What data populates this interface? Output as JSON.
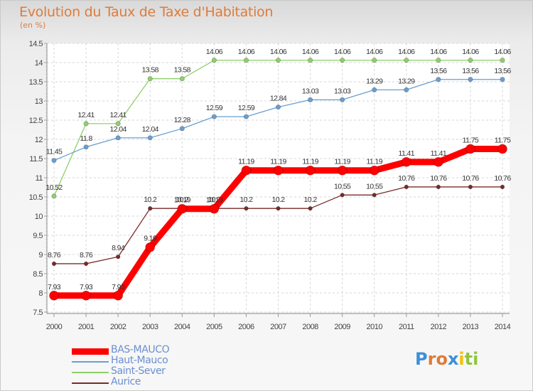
{
  "header": {
    "title": "Evolution du Taux de Taxe d'Habitation",
    "subtitle": "(en %)"
  },
  "chart_data": {
    "type": "line",
    "title": "Evolution du Taux de Taxe d'Habitation",
    "subtitle": "(en %)",
    "xlabel": "",
    "ylabel": "",
    "categories": [
      "2000",
      "2001",
      "2002",
      "2003",
      "2004",
      "2005",
      "2006",
      "2007",
      "2008",
      "2009",
      "2010",
      "2011",
      "2012",
      "2013",
      "2014"
    ],
    "ylim": [
      7.5,
      14.5
    ],
    "yticks": [
      "7.5",
      "8",
      "8.5",
      "9",
      "9.5",
      "10",
      "10.5",
      "11",
      "11.5",
      "12",
      "12.5",
      "13",
      "13.5",
      "14",
      "14.5"
    ],
    "grid": true,
    "legend_position": "bottom-left",
    "series": [
      {
        "name": "Aurice",
        "color": "#7a2a2a",
        "width": 1.3,
        "marker": 2.8,
        "values": [
          8.76,
          8.76,
          8.94,
          10.2,
          10.2,
          10.2,
          10.2,
          10.2,
          10.2,
          10.55,
          10.55,
          10.76,
          10.76,
          10.76,
          10.76
        ],
        "labels": [
          "8.76",
          "8.76",
          "8.94",
          "10.2",
          "10.2",
          "10.2",
          "10.2",
          "10.2",
          "10.2",
          "10.55",
          "10.55",
          "10.76",
          "10.76",
          "10.76",
          "10.76"
        ]
      },
      {
        "name": "Saint-Sever",
        "color": "#8fd06a",
        "width": 1.3,
        "marker": 3.2,
        "values": [
          10.52,
          12.41,
          12.41,
          13.58,
          13.58,
          14.06,
          14.06,
          14.06,
          14.06,
          14.06,
          14.06,
          14.06,
          14.06,
          14.06,
          14.06
        ],
        "labels": [
          "10.52",
          "12.41",
          "12.41",
          "13.58",
          "13.58",
          "14.06",
          "14.06",
          "14.06",
          "14.06",
          "14.06",
          "14.06",
          "14.06",
          "14.06",
          "14.06",
          "14.06"
        ]
      },
      {
        "name": "Haut-Mauco",
        "color": "#6a9fd0",
        "width": 1.3,
        "marker": 3.2,
        "values": [
          11.45,
          11.8,
          12.04,
          12.04,
          12.28,
          12.59,
          12.59,
          12.84,
          13.03,
          13.03,
          13.29,
          13.29,
          13.56,
          13.56,
          13.56
        ],
        "labels": [
          "11.45",
          "11.8",
          "12.04",
          "12.04",
          "12.28",
          "12.59",
          "12.59",
          "12.84",
          "13.03",
          "13.03",
          "13.29",
          "13.29",
          "13.56",
          "13.56",
          "13.56"
        ]
      },
      {
        "name": "BAS-MAUCO",
        "color": "#ff0000",
        "width": 9,
        "marker": 6.5,
        "values": [
          7.93,
          7.93,
          7.93,
          9.19,
          10.19,
          10.19,
          11.19,
          11.19,
          11.19,
          11.19,
          11.19,
          11.41,
          11.41,
          11.75,
          11.75
        ],
        "labels": [
          "7.93",
          "7.93",
          "7.93",
          "9.19",
          "10.19",
          "10.19",
          "11.19",
          "11.19",
          "11.19",
          "11.19",
          "11.19",
          "11.41",
          "11.41",
          "11.75",
          "11.75"
        ]
      }
    ]
  },
  "legend": {
    "items": [
      {
        "label": "BAS-MAUCO",
        "color": "#ff0000",
        "thickness": 9
      },
      {
        "label": "Haut-Mauco",
        "color": "#6a9fd0",
        "thickness": 2
      },
      {
        "label": "Saint-Sever",
        "color": "#8fd06a",
        "thickness": 2
      },
      {
        "label": "Aurice",
        "color": "#7a2a2a",
        "thickness": 2
      }
    ]
  },
  "brand": {
    "letters": [
      "P",
      "r",
      "o",
      "x",
      "i",
      "t",
      "i"
    ],
    "colors": [
      "#3d8fd8",
      "#e07b39",
      "#e07b39",
      "#3d8fd8",
      "#f2c200",
      "#8fc63d",
      "#8fc63d"
    ]
  }
}
